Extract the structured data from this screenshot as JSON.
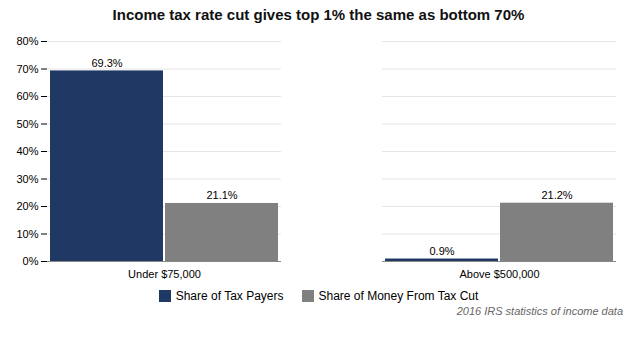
{
  "chart_data": {
    "type": "bar",
    "title": "Income tax rate cut gives top 1% the same as bottom 70%",
    "categories": [
      "Under $75,000",
      "Above $500,000"
    ],
    "series": [
      {
        "name": "Share of Tax Payers",
        "color": "#1F3864",
        "values": [
          69.3,
          0.9
        ],
        "value_labels": [
          "69.3%",
          "0.9%"
        ]
      },
      {
        "name": "Share of Money From Tax Cut",
        "color": "#808080",
        "values": [
          21.1,
          21.2
        ],
        "value_labels": [
          "21.1%",
          "21.2%"
        ]
      }
    ],
    "ylim": [
      0,
      80
    ],
    "yticks": [
      {
        "value": 0,
        "label": "0%"
      },
      {
        "value": 10,
        "label": "10%"
      },
      {
        "value": 20,
        "label": "20%"
      },
      {
        "value": 30,
        "label": "30%"
      },
      {
        "value": 40,
        "label": "40%"
      },
      {
        "value": 50,
        "label": "50%"
      },
      {
        "value": 60,
        "label": "60%"
      },
      {
        "value": 70,
        "label": "70%"
      },
      {
        "value": 80,
        "label": "80%"
      }
    ],
    "grid": true,
    "data_labels": true,
    "legend": "bottom",
    "annotations": [
      "2016 IRS statistics of income data"
    ]
  }
}
